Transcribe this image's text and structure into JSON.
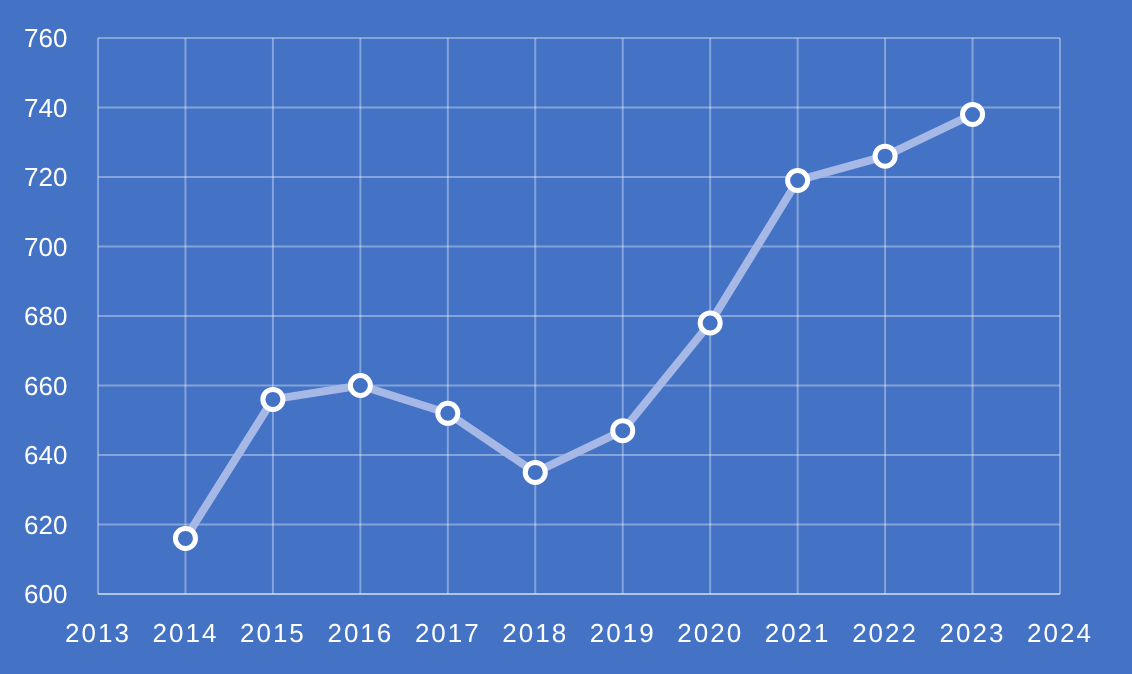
{
  "chart_data": {
    "type": "line",
    "x": [
      2014,
      2015,
      2016,
      2017,
      2018,
      2019,
      2020,
      2021,
      2022,
      2023
    ],
    "series": [
      {
        "color": "#a6b8e6",
        "values": [
          616,
          656,
          660,
          652,
          635,
          647,
          678,
          719,
          726,
          738
        ]
      }
    ],
    "xlim": [
      2013,
      2024
    ],
    "xticks": [
      2013,
      2014,
      2015,
      2016,
      2017,
      2018,
      2019,
      2020,
      2021,
      2022,
      2023,
      2024
    ],
    "ylim": [
      600,
      760
    ],
    "yticks": [
      600,
      620,
      640,
      660,
      680,
      700,
      720,
      740,
      760
    ],
    "grid": true,
    "marker": "circle",
    "line_style": "solid"
  }
}
